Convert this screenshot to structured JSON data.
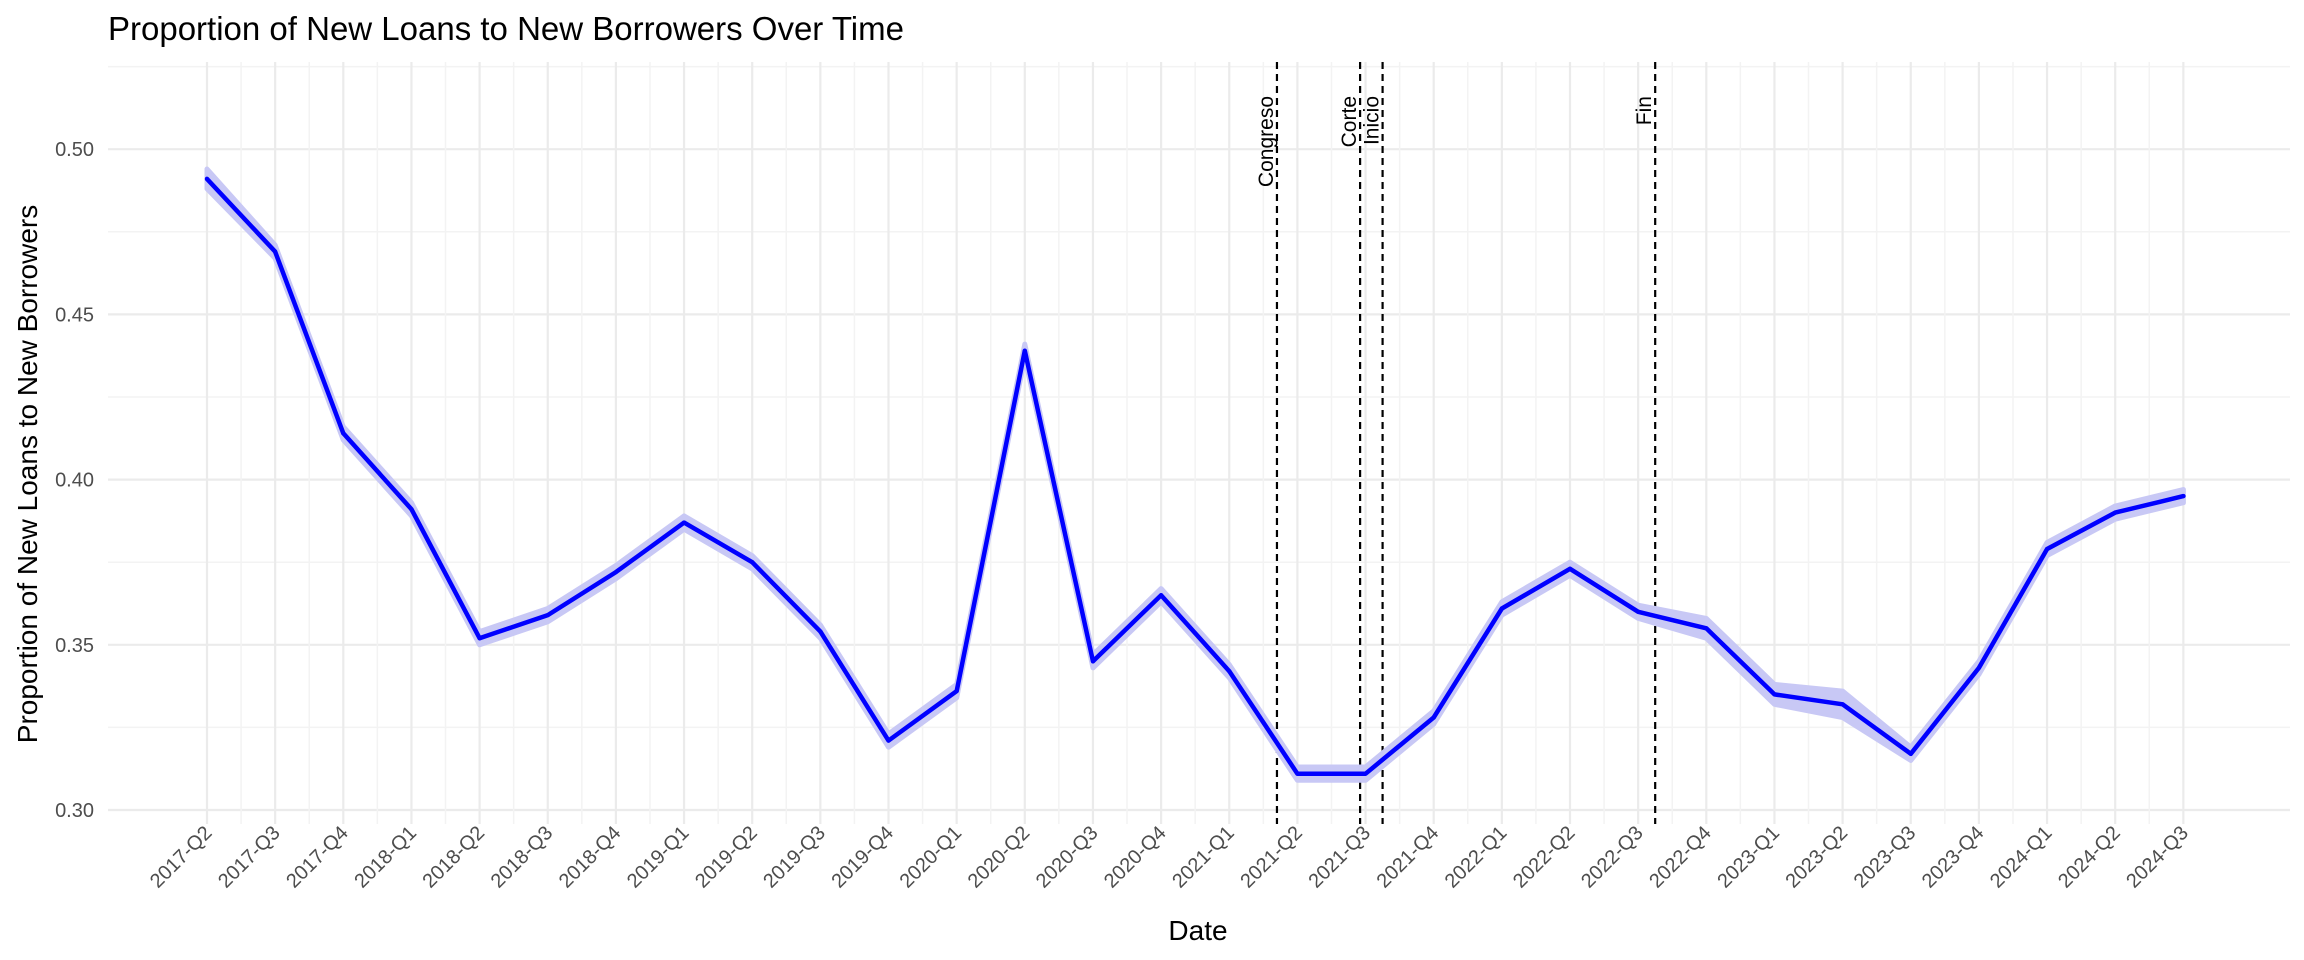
{
  "chart_data": {
    "type": "line",
    "title": "Proportion of New Loans to New Borrowers Over Time",
    "xlabel": "Date",
    "ylabel": "Proportion of New Loans to New Borrowers",
    "ylim": [
      0.3,
      0.525
    ],
    "y_ticks": [
      "0.30",
      "0.35",
      "0.40",
      "0.45",
      "0.50"
    ],
    "grid": true,
    "line_color": "#0000FF",
    "band_color": "#C8C8F5",
    "categories": [
      "2017-Q2",
      "2017-Q3",
      "2017-Q4",
      "2018-Q1",
      "2018-Q2",
      "2018-Q3",
      "2018-Q4",
      "2019-Q1",
      "2019-Q2",
      "2019-Q3",
      "2019-Q4",
      "2020-Q1",
      "2020-Q2",
      "2020-Q3",
      "2020-Q4",
      "2021-Q1",
      "2021-Q2",
      "2021-Q3",
      "2021-Q4",
      "2022-Q1",
      "2022-Q2",
      "2022-Q3",
      "2022-Q4",
      "2023-Q1",
      "2023-Q2",
      "2023-Q3",
      "2023-Q4",
      "2024-Q1",
      "2024-Q2",
      "2024-Q3"
    ],
    "values": [
      0.491,
      0.469,
      0.414,
      0.391,
      0.352,
      0.359,
      0.372,
      0.387,
      0.375,
      0.354,
      0.321,
      0.336,
      0.439,
      0.345,
      0.365,
      0.342,
      0.311,
      0.311,
      0.328,
      0.361,
      0.373,
      0.36,
      0.355,
      0.335,
      0.332,
      0.317,
      0.343,
      0.379,
      0.39,
      0.395
    ],
    "ci_halfwidth": [
      0.003,
      0.002,
      0.002,
      0.002,
      0.002,
      0.002,
      0.002,
      0.002,
      0.002,
      0.002,
      0.002,
      0.002,
      0.002,
      0.002,
      0.002,
      0.002,
      0.002,
      0.002,
      0.002,
      0.002,
      0.002,
      0.002,
      0.003,
      0.003,
      0.004,
      0.002,
      0.002,
      0.002,
      0.002,
      0.002
    ],
    "vlines": [
      {
        "label": "Congreso",
        "x": 15.7
      },
      {
        "label": "Corte",
        "x": 16.92
      },
      {
        "label": "Inicio",
        "x": 17.25
      },
      {
        "label": "Fin",
        "x": 21.25
      }
    ]
  }
}
